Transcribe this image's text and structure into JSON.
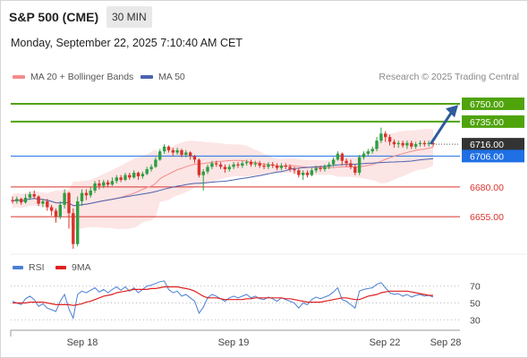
{
  "header": {
    "title": "S&P 500 (CME)",
    "timeframe": "30 MIN",
    "datetime": "Monday, September 22, 2025 7:10:40 AM CET"
  },
  "legend": {
    "ma20": "MA 20 + Bollinger Bands",
    "ma50": "MA 50",
    "credit": "Research © 2025 Trading Central",
    "rsi": "RSI",
    "rsi_ma": "9MA"
  },
  "colors": {
    "candle_up": "#2f9e44",
    "candle_down": "#d9332b",
    "ma20": "#f48b8b",
    "bollinger_fill": "#fbdcdc",
    "ma50": "#4b63b0",
    "resistance": "#4fa30b",
    "current": "#333333",
    "pivot": "#1f6fe5",
    "support": "#d9332b",
    "arrow": "#2e5c9c",
    "rsi": "#4b7fd6",
    "rsi_ma": "#e02020"
  },
  "chart_data": [
    {
      "type": "candlestick",
      "x_labels": [
        "Sep 18",
        "Sep 19",
        "Sep 22",
        "Sep 28"
      ],
      "ylim": [
        6625,
        6762
      ],
      "levels": [
        {
          "value": 6750.0,
          "label": "6750.00",
          "kind": "resistance"
        },
        {
          "value": 6735.0,
          "label": "6735.00",
          "kind": "resistance"
        },
        {
          "value": 6716.0,
          "label": "6716.00",
          "kind": "current"
        },
        {
          "value": 6706.0,
          "label": "6706.00",
          "kind": "pivot"
        },
        {
          "value": 6680.0,
          "label": "6680.00",
          "kind": "support"
        },
        {
          "value": 6655.0,
          "label": "6655.00",
          "kind": "support"
        }
      ],
      "candles": [
        [
          6669,
          6668,
          6672,
          6666
        ],
        [
          6668,
          6670,
          6672,
          6666
        ],
        [
          6670,
          6667,
          6671,
          6665
        ],
        [
          6667,
          6671,
          6674,
          6666
        ],
        [
          6671,
          6674,
          6676,
          6669
        ],
        [
          6674,
          6672,
          6677,
          6670
        ],
        [
          6672,
          6666,
          6673,
          6664
        ],
        [
          6666,
          6668,
          6670,
          6663
        ],
        [
          6668,
          6663,
          6670,
          6660
        ],
        [
          6663,
          6660,
          6665,
          6656
        ],
        [
          6660,
          6655,
          6662,
          6650
        ],
        [
          6655,
          6665,
          6668,
          6653
        ],
        [
          6665,
          6675,
          6678,
          6662
        ],
        [
          6675,
          6658,
          6676,
          6645
        ],
        [
          6658,
          6632,
          6662,
          6628
        ],
        [
          6632,
          6668,
          6672,
          6630
        ],
        [
          6668,
          6675,
          6678,
          6664
        ],
        [
          6675,
          6673,
          6678,
          6669
        ],
        [
          6673,
          6677,
          6680,
          6671
        ],
        [
          6677,
          6683,
          6685,
          6675
        ],
        [
          6683,
          6681,
          6686,
          6678
        ],
        [
          6681,
          6684,
          6686,
          6679
        ],
        [
          6684,
          6682,
          6686,
          6680
        ],
        [
          6682,
          6685,
          6688,
          6681
        ],
        [
          6685,
          6688,
          6690,
          6683
        ],
        [
          6688,
          6686,
          6690,
          6684
        ],
        [
          6686,
          6690,
          6692,
          6685
        ],
        [
          6690,
          6688,
          6692,
          6686
        ],
        [
          6688,
          6692,
          6694,
          6687
        ],
        [
          6692,
          6689,
          6693,
          6686
        ],
        [
          6689,
          6691,
          6693,
          6687
        ],
        [
          6691,
          6695,
          6697,
          6690
        ],
        [
          6695,
          6697,
          6699,
          6693
        ],
        [
          6697,
          6703,
          6705,
          6696
        ],
        [
          6703,
          6710,
          6712,
          6702
        ],
        [
          6710,
          6714,
          6716,
          6708
        ],
        [
          6714,
          6711,
          6715,
          6709
        ],
        [
          6711,
          6709,
          6713,
          6706
        ],
        [
          6709,
          6711,
          6713,
          6707
        ],
        [
          6711,
          6707,
          6712,
          6705
        ],
        [
          6707,
          6709,
          6711,
          6705
        ],
        [
          6709,
          6706,
          6710,
          6703
        ],
        [
          6706,
          6703,
          6707,
          6700
        ],
        [
          6703,
          6690,
          6704,
          6688
        ],
        [
          6690,
          6693,
          6695,
          6677
        ],
        [
          6693,
          6697,
          6699,
          6691
        ],
        [
          6697,
          6700,
          6702,
          6695
        ],
        [
          6700,
          6699,
          6702,
          6697
        ],
        [
          6699,
          6697,
          6701,
          6695
        ],
        [
          6697,
          6695,
          6699,
          6692
        ],
        [
          6695,
          6697,
          6699,
          6693
        ],
        [
          6697,
          6699,
          6701,
          6695
        ],
        [
          6699,
          6698,
          6701,
          6696
        ],
        [
          6698,
          6700,
          6702,
          6696
        ],
        [
          6700,
          6701,
          6703,
          6698
        ],
        [
          6701,
          6699,
          6703,
          6697
        ],
        [
          6699,
          6700,
          6702,
          6697
        ],
        [
          6700,
          6698,
          6702,
          6696
        ],
        [
          6698,
          6697,
          6700,
          6695
        ],
        [
          6697,
          6699,
          6701,
          6695
        ],
        [
          6699,
          6698,
          6701,
          6696
        ],
        [
          6698,
          6696,
          6700,
          6694
        ],
        [
          6696,
          6698,
          6700,
          6694
        ],
        [
          6698,
          6697,
          6700,
          6695
        ],
        [
          6697,
          6695,
          6699,
          6693
        ],
        [
          6695,
          6694,
          6697,
          6691
        ],
        [
          6694,
          6690,
          6696,
          6688
        ],
        [
          6690,
          6692,
          6694,
          6686
        ],
        [
          6692,
          6690,
          6694,
          6688
        ],
        [
          6690,
          6694,
          6696,
          6689
        ],
        [
          6694,
          6696,
          6698,
          6692
        ],
        [
          6696,
          6695,
          6698,
          6693
        ],
        [
          6695,
          6697,
          6699,
          6693
        ],
        [
          6697,
          6699,
          6701,
          6695
        ],
        [
          6699,
          6703,
          6705,
          6697
        ],
        [
          6703,
          6708,
          6710,
          6702
        ],
        [
          6708,
          6702,
          6709,
          6698
        ],
        [
          6702,
          6700,
          6704,
          6697
        ],
        [
          6700,
          6697,
          6703,
          6695
        ],
        [
          6697,
          6692,
          6699,
          6690
        ],
        [
          6692,
          6705,
          6707,
          6690
        ],
        [
          6705,
          6708,
          6710,
          6703
        ],
        [
          6708,
          6710,
          6712,
          6706
        ],
        [
          6710,
          6712,
          6714,
          6708
        ],
        [
          6712,
          6719,
          6722,
          6710
        ],
        [
          6719,
          6725,
          6730,
          6717
        ],
        [
          6725,
          6722,
          6727,
          6718
        ],
        [
          6722,
          6718,
          6724,
          6715
        ],
        [
          6718,
          6716,
          6720,
          6713
        ],
        [
          6716,
          6717,
          6719,
          6713
        ],
        [
          6717,
          6715,
          6719,
          6713
        ],
        [
          6715,
          6717,
          6719,
          6712
        ],
        [
          6717,
          6714,
          6719,
          6712
        ],
        [
          6714,
          6716,
          6718,
          6712
        ],
        [
          6716,
          6717,
          6719,
          6714
        ],
        [
          6717,
          6716,
          6719,
          6714
        ],
        [
          6716,
          6717,
          6719,
          6714
        ],
        [
          6717,
          6716,
          6718,
          6714
        ]
      ]
    },
    {
      "type": "line",
      "name": "RSI",
      "yticks": [
        30,
        50,
        70
      ],
      "ylim": [
        22,
        78
      ],
      "rsi": [
        52,
        50,
        48,
        55,
        58,
        54,
        46,
        49,
        44,
        42,
        40,
        52,
        60,
        43,
        32,
        60,
        64,
        62,
        65,
        68,
        63,
        66,
        62,
        66,
        69,
        65,
        69,
        64,
        68,
        62,
        66,
        70,
        71,
        73,
        75,
        76,
        66,
        62,
        64,
        58,
        60,
        56,
        52,
        38,
        45,
        56,
        60,
        58,
        55,
        52,
        56,
        58,
        56,
        58,
        60,
        56,
        58,
        55,
        54,
        57,
        55,
        52,
        56,
        54,
        52,
        50,
        44,
        50,
        48,
        54,
        57,
        55,
        57,
        59,
        63,
        68,
        54,
        52,
        48,
        44,
        64,
        66,
        67,
        68,
        72,
        74,
        68,
        62,
        60,
        61,
        58,
        60,
        57,
        59,
        60,
        58,
        59,
        57
      ],
      "rsi_ma": [
        50,
        50,
        50,
        50,
        51,
        51,
        51,
        51,
        50,
        49,
        48,
        48,
        48,
        48,
        47,
        48,
        49,
        51,
        52,
        54,
        56,
        58,
        59,
        60,
        62,
        63,
        64,
        65,
        66,
        66,
        66,
        66,
        67,
        67,
        68,
        69,
        69,
        69,
        69,
        68,
        67,
        66,
        64,
        61,
        58,
        56,
        56,
        56,
        55,
        54,
        54,
        54,
        54,
        54,
        55,
        55,
        56,
        56,
        56,
        56,
        56,
        56,
        56,
        55,
        55,
        54,
        53,
        52,
        51,
        51,
        51,
        51,
        52,
        53,
        54,
        55,
        56,
        56,
        55,
        54,
        54,
        56,
        58,
        59,
        60,
        62,
        63,
        64,
        64,
        64,
        64,
        64,
        63,
        62,
        61,
        60,
        59,
        59
      ]
    }
  ]
}
